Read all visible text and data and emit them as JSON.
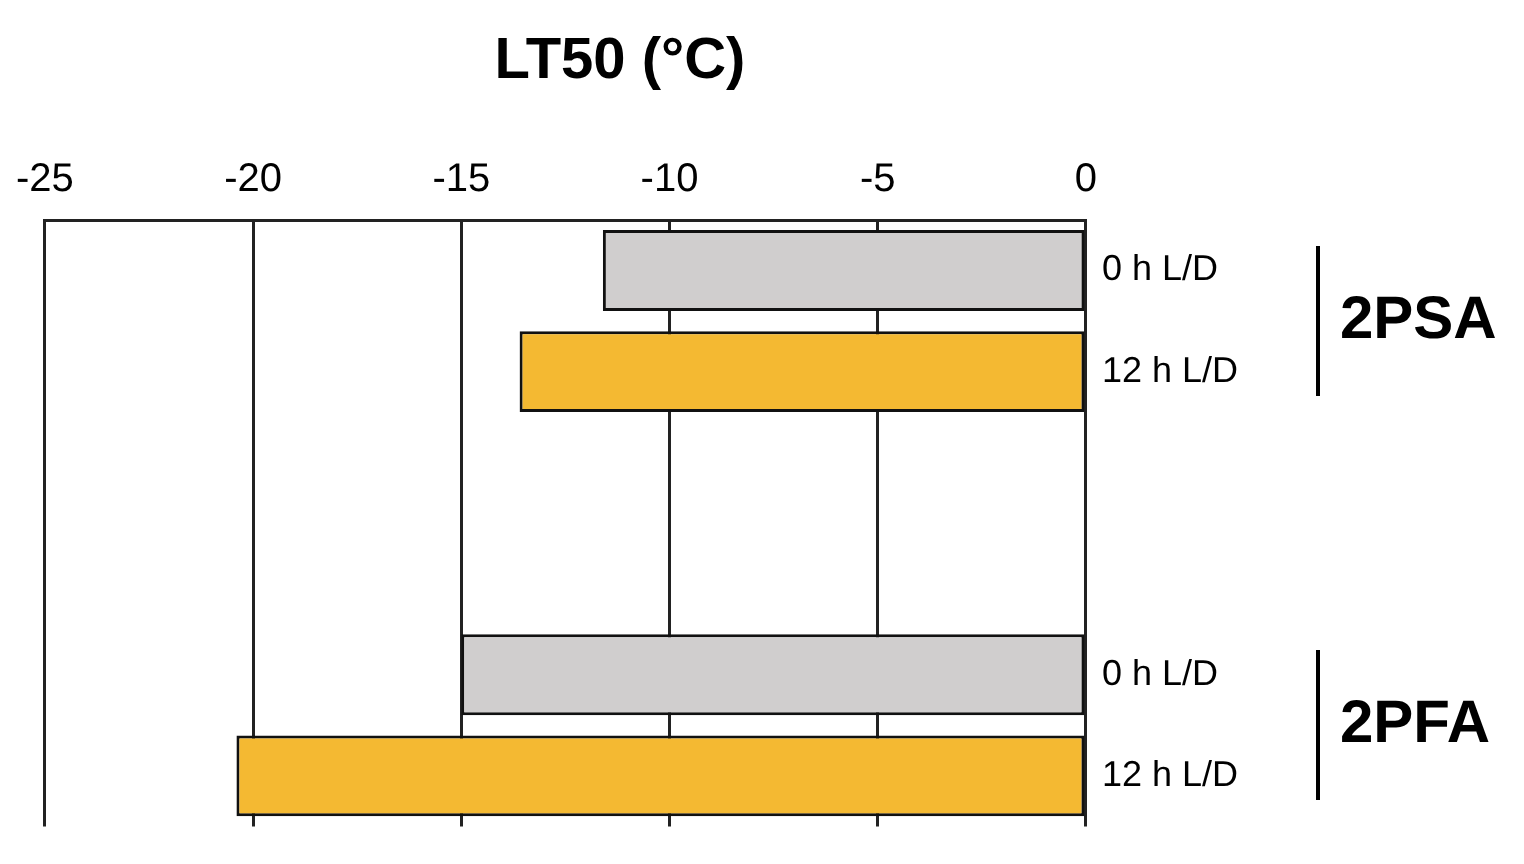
{
  "chart_data": {
    "type": "bar",
    "orientation": "horizontal",
    "title": "LT50 (°C)",
    "categories": [
      "0 h L/D",
      "12 h L/D",
      null,
      null,
      "0 h L/D",
      "12 h L/D"
    ],
    "values": [
      -11.6,
      -13.6,
      null,
      null,
      -15.0,
      -20.4
    ],
    "colors": [
      "#d0cece",
      "#f4b932",
      null,
      null,
      "#d0cece",
      "#f4b932"
    ],
    "xlim": [
      -25,
      0
    ],
    "xticks": [
      -25,
      -20,
      -15,
      -10,
      -5,
      0
    ],
    "grid": "x",
    "annotations": [
      "2PSA",
      "2PFA"
    ]
  }
}
